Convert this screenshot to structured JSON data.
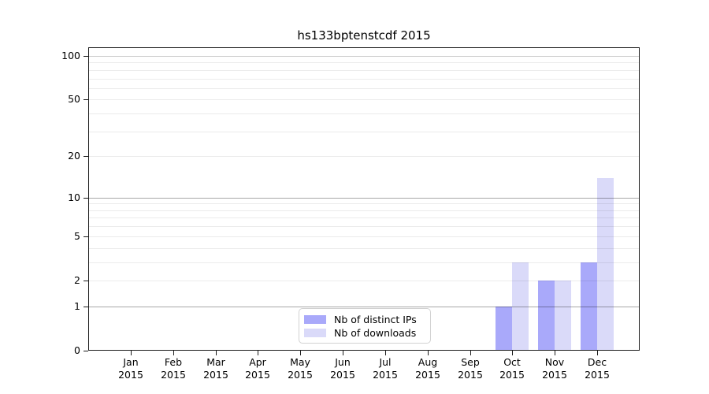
{
  "chart_data": {
    "type": "bar",
    "title": "hs133bptenstcdf 2015",
    "categories": [
      "Jan",
      "Feb",
      "Mar",
      "Apr",
      "May",
      "Jun",
      "Jul",
      "Aug",
      "Sep",
      "Oct",
      "Nov",
      "Dec"
    ],
    "year_label": "2015",
    "series": [
      {
        "name": "Nb of distinct IPs",
        "color": "#a9a9fa",
        "values": [
          0,
          0,
          0,
          0,
          0,
          0,
          0,
          0,
          0,
          1,
          2,
          3
        ]
      },
      {
        "name": "Nb of downloads",
        "color": "#dadaf9",
        "values": [
          0,
          0,
          0,
          0,
          0,
          0,
          0,
          0,
          0,
          3,
          2,
          14
        ]
      }
    ],
    "y_axis": {
      "scale": "log1p",
      "ticks": [
        0,
        1,
        2,
        5,
        10,
        20,
        50,
        100
      ],
      "range": [
        0,
        114
      ],
      "grid_major": [
        1,
        10
      ],
      "grid_mid": [
        100
      ],
      "grid_minor": [
        2,
        3,
        4,
        5,
        6,
        7,
        8,
        9,
        20,
        30,
        40,
        50,
        60,
        70,
        80,
        90
      ]
    },
    "x_axis": {
      "label_lines": 2,
      "tick_count": 12
    },
    "legend": {
      "position": "bottom-center"
    },
    "grid": true
  },
  "colors": {
    "background": "#ffffff",
    "spine": "#1a1a1a",
    "grid_major": "rgba(0,0,0,0.34)",
    "grid_mid": "rgba(0,0,0,0.20)",
    "grid_minor": "rgba(0,0,0,0.08)",
    "text": "#000000",
    "legend_border": "#d2d2d2"
  }
}
